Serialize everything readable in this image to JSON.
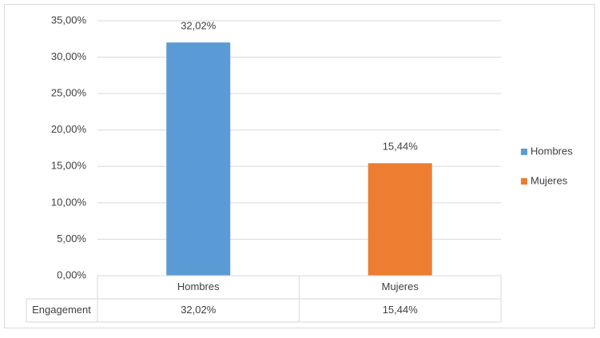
{
  "chart_data": {
    "type": "bar",
    "categories": [
      "Hombres",
      "Mujeres"
    ],
    "series": [
      {
        "name": "Engagement",
        "colors": [
          "#5b9bd5",
          "#ed7d31"
        ],
        "values": [
          32.02,
          15.44
        ],
        "value_labels": [
          "32,02%",
          "15,44%"
        ]
      }
    ],
    "ylim": [
      0,
      35
    ],
    "yticks": [
      {
        "value": 0,
        "label": "0,00%"
      },
      {
        "value": 5,
        "label": "5,00%"
      },
      {
        "value": 10,
        "label": "10,00%"
      },
      {
        "value": 15,
        "label": "15,00%"
      },
      {
        "value": 20,
        "label": "20,00%"
      },
      {
        "value": 25,
        "label": "25,00%"
      },
      {
        "value": 30,
        "label": "30,00%"
      },
      {
        "value": 35,
        "label": "35,00%"
      }
    ],
    "grid": true,
    "legend": "right",
    "data_table": true
  }
}
